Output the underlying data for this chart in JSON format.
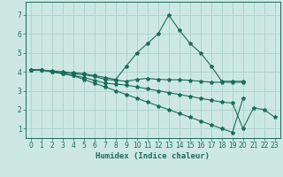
{
  "background_color": "#cde8e2",
  "grid_color": "#afd4cc",
  "line_color": "#1a6b5a",
  "x_label": "Humidex (Indice chaleur)",
  "ylim": [
    0.5,
    7.7
  ],
  "xlim": [
    -0.5,
    23.5
  ],
  "yticks": [
    1,
    2,
    3,
    4,
    5,
    6,
    7
  ],
  "xticks": [
    0,
    1,
    2,
    3,
    4,
    5,
    6,
    7,
    8,
    9,
    10,
    11,
    12,
    13,
    14,
    15,
    16,
    17,
    18,
    19,
    20,
    21,
    22,
    23
  ],
  "series": [
    {
      "x": [
        0,
        1,
        2,
        3,
        4,
        5,
        6,
        7,
        8,
        9,
        10,
        11,
        12,
        13,
        14,
        15,
        16,
        17,
        18,
        19,
        20
      ],
      "y": [
        4.1,
        4.1,
        4.05,
        4.0,
        3.95,
        3.9,
        3.8,
        3.7,
        3.6,
        4.3,
        5.0,
        5.5,
        6.0,
        7.0,
        6.2,
        5.5,
        5.0,
        4.3,
        3.5,
        3.5,
        3.5
      ]
    },
    {
      "x": [
        0,
        1,
        2,
        3,
        4,
        5,
        6,
        7,
        8,
        9,
        10,
        11,
        12,
        13,
        14,
        15,
        16,
        17,
        18,
        19,
        20
      ],
      "y": [
        4.1,
        4.1,
        4.0,
        3.95,
        3.9,
        3.85,
        3.75,
        3.6,
        3.55,
        3.5,
        3.6,
        3.65,
        3.6,
        3.58,
        3.58,
        3.55,
        3.5,
        3.45,
        3.45,
        3.45,
        3.45
      ]
    },
    {
      "x": [
        0,
        1,
        2,
        3,
        4,
        5,
        6,
        7,
        8,
        9,
        10,
        11,
        12,
        13,
        14,
        15,
        16,
        17,
        18,
        19,
        20,
        21,
        22,
        23
      ],
      "y": [
        4.1,
        4.1,
        4.0,
        3.9,
        3.8,
        3.7,
        3.55,
        3.4,
        3.35,
        3.3,
        3.2,
        3.1,
        3.0,
        2.9,
        2.8,
        2.7,
        2.6,
        2.5,
        2.4,
        2.35,
        1.0,
        2.1,
        2.0,
        1.6
      ]
    },
    {
      "x": [
        0,
        1,
        2,
        3,
        4,
        5,
        6,
        7,
        8,
        9,
        10,
        11,
        12,
        13,
        14,
        15,
        16,
        17,
        18,
        19,
        20
      ],
      "y": [
        4.1,
        4.1,
        4.0,
        3.9,
        3.8,
        3.6,
        3.4,
        3.2,
        3.0,
        2.8,
        2.6,
        2.4,
        2.2,
        2.0,
        1.8,
        1.6,
        1.4,
        1.2,
        1.0,
        0.8,
        2.6
      ]
    }
  ]
}
